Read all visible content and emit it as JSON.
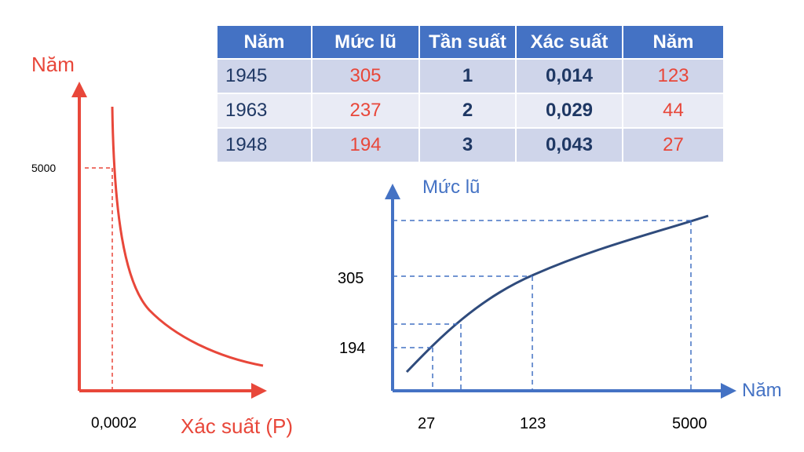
{
  "table": {
    "headers": [
      "Năm",
      "Mức lũ",
      "Tần suất",
      "Xác suất",
      "Năm"
    ],
    "rows": [
      [
        "1945",
        "305",
        "1",
        "0,014",
        "123"
      ],
      [
        "1963",
        "237",
        "2",
        "0,029",
        "44"
      ],
      [
        "1948",
        "194",
        "3",
        "0,043",
        "27"
      ]
    ]
  },
  "colors": {
    "left_chart": "#e8473a",
    "right_chart": "#4472c4",
    "right_curve": "#2f4b7c",
    "table_header": "#4472c4"
  },
  "chart_data": [
    {
      "type": "line",
      "ylabel": "Năm",
      "xlabel": "Xác suất (P)",
      "x_ticks": [
        "0,0002"
      ],
      "y_ticks": [
        "5000"
      ],
      "reference_point": {
        "x": 0.0002,
        "y": 5000
      },
      "series": [
        {
          "x": [
            0.0002,
            0.0003,
            0.0005,
            0.001,
            0.002,
            0.004,
            0.008,
            0.015,
            0.025,
            0.04
          ],
          "y": [
            6000,
            4200,
            2800,
            1600,
            900,
            560,
            380,
            270,
            200,
            160
          ]
        }
      ],
      "grid": false
    },
    {
      "type": "line",
      "ylabel": "Mức lũ",
      "xlabel": "Năm",
      "x_ticks": [
        "27",
        "123",
        "5000"
      ],
      "y_ticks": [
        "305",
        "194"
      ],
      "reference_points": [
        {
          "x": 27,
          "y": 194
        },
        {
          "x": 44,
          "y": 237
        },
        {
          "x": 123,
          "y": 305
        },
        {
          "x": 5000,
          "y": null
        }
      ],
      "series": [
        {
          "x": [
            20,
            27,
            44,
            80,
            123,
            500,
            1500,
            5000,
            6500
          ],
          "y": [
            170,
            194,
            237,
            280,
            305,
            335,
            358,
            382,
            390
          ]
        }
      ],
      "grid": false
    }
  ]
}
